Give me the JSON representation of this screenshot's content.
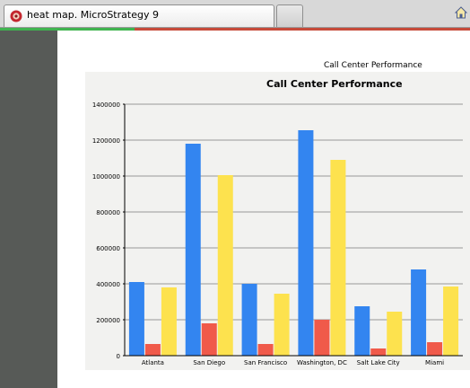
{
  "browser": {
    "tab_title": "heat map. MicroStrategy 9"
  },
  "report": {
    "caption": "Call Center Performance"
  },
  "colors": {
    "series_blue": "#3385f0",
    "series_red": "#f05a4a",
    "series_yellow": "#fde24e",
    "sidebar": "#575a57"
  },
  "chart_data": {
    "type": "bar",
    "title": "Call Center Performance",
    "categories": [
      "Atlanta",
      "San Diego",
      "San Francisco",
      "Washington, DC",
      "Salt Lake City",
      "Miami"
    ],
    "series": [
      {
        "values": [
          410000,
          1180000,
          400000,
          1255000,
          275000,
          480000
        ],
        "color": "#3385f0"
      },
      {
        "values": [
          65000,
          180000,
          65000,
          200000,
          40000,
          75000
        ],
        "color": "#f05a4a"
      },
      {
        "values": [
          380000,
          1005000,
          345000,
          1090000,
          245000,
          385000
        ],
        "color": "#fde24e"
      }
    ],
    "yticks": [
      "0",
      "200000",
      "400000",
      "600000",
      "800000",
      "1000000",
      "1200000",
      "1400000"
    ],
    "ylim": [
      0,
      1400000
    ],
    "grid": true,
    "legend": "none"
  }
}
